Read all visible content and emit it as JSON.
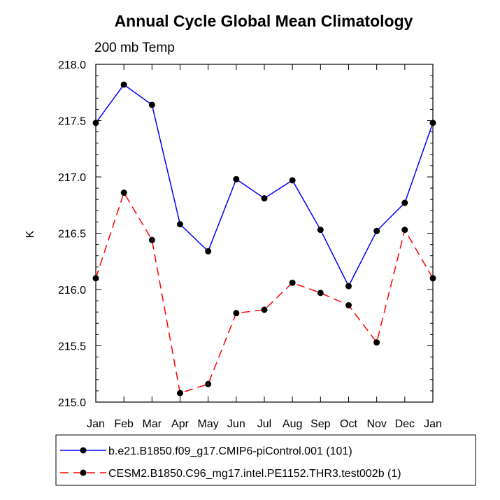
{
  "chart_data": {
    "type": "line",
    "title": "Annual Cycle Global Mean Climatology",
    "subtitle": "200 mb Temp",
    "xlabel": "",
    "ylabel": "K",
    "ylim": [
      215.0,
      218.0
    ],
    "yticks": [
      "215.0",
      "215.5",
      "216.0",
      "216.5",
      "217.0",
      "217.5",
      "218.0"
    ],
    "categories": [
      "Jan",
      "Feb",
      "Mar",
      "Apr",
      "May",
      "Jun",
      "Jul",
      "Aug",
      "Sep",
      "Oct",
      "Nov",
      "Dec",
      "Jan"
    ],
    "series": [
      {
        "name": "b.e21.B1850.f09_g17.CMIP6-piControl.001 (101)",
        "color": "#0000ff",
        "dash": "solid",
        "values": [
          217.48,
          217.82,
          217.64,
          216.58,
          216.34,
          216.98,
          216.81,
          216.97,
          216.53,
          216.03,
          216.52,
          216.77,
          217.48
        ]
      },
      {
        "name": "CESM2.B1850.C96_mg17.intel.PE1152.THR3.test002b (1)",
        "color": "#ff0000",
        "dash": "dashed",
        "values": [
          216.1,
          216.86,
          216.44,
          215.08,
          215.16,
          215.79,
          215.82,
          216.06,
          215.97,
          215.86,
          215.53,
          216.53,
          216.1
        ]
      }
    ],
    "grid": false,
    "legend": "bottom"
  }
}
